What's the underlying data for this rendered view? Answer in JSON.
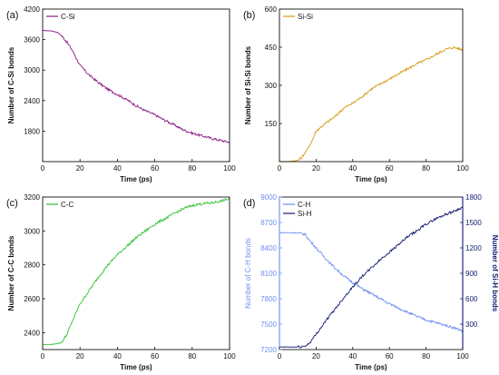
{
  "colors": {
    "cSi": "#8b1a87",
    "siSi": "#d99a18",
    "cC": "#2fc22f",
    "cH": "#6f8ef0",
    "siH": "#101a72"
  },
  "chart_data": [
    {
      "panel": "(a)",
      "type": "line",
      "xlabel": "Time (ps)",
      "ylabel": "Number of C-Si bonds",
      "xlim": [
        0,
        100
      ],
      "ylim": [
        1200,
        4200
      ],
      "xticks": [
        0,
        20,
        40,
        60,
        80,
        100
      ],
      "yticks": [
        1800,
        2400,
        3000,
        3600,
        4200
      ],
      "legend": "top-left",
      "series": [
        {
          "name": "C-Si",
          "color": "cSi",
          "x": [
            0,
            5,
            8,
            10,
            13,
            16,
            20,
            25,
            30,
            35,
            40,
            45,
            50,
            55,
            60,
            65,
            70,
            75,
            80,
            85,
            90,
            95,
            100
          ],
          "y": [
            3780,
            3770,
            3740,
            3680,
            3550,
            3380,
            3090,
            2900,
            2750,
            2620,
            2520,
            2420,
            2300,
            2200,
            2120,
            2020,
            1930,
            1830,
            1760,
            1710,
            1660,
            1620,
            1580
          ]
        }
      ]
    },
    {
      "panel": "(b)",
      "type": "line",
      "xlabel": "Time (ps)",
      "ylabel": "Number of Si-Si bonds",
      "xlim": [
        0,
        100
      ],
      "ylim": [
        0,
        600
      ],
      "xticks": [
        0,
        20,
        40,
        60,
        80,
        100
      ],
      "yticks": [
        150,
        300,
        450,
        600
      ],
      "legend": "top-left",
      "series": [
        {
          "name": "Si-Si",
          "color": "siSi",
          "x": [
            0,
            5,
            10,
            12,
            15,
            18,
            20,
            25,
            30,
            35,
            40,
            45,
            50,
            55,
            60,
            65,
            70,
            75,
            80,
            85,
            90,
            95,
            100
          ],
          "y": [
            0,
            0,
            5,
            15,
            45,
            85,
            120,
            150,
            175,
            210,
            230,
            255,
            285,
            305,
            325,
            345,
            365,
            385,
            400,
            420,
            440,
            450,
            440
          ]
        }
      ]
    },
    {
      "panel": "(c)",
      "type": "line",
      "xlabel": "Time (ps)",
      "ylabel": "Number of C-C bonds",
      "xlim": [
        0,
        100
      ],
      "ylim": [
        2300,
        3200
      ],
      "xticks": [
        0,
        20,
        40,
        60,
        80,
        100
      ],
      "yticks": [
        2400,
        2600,
        2800,
        3000,
        3200
      ],
      "legend": "top-left",
      "series": [
        {
          "name": "C-C",
          "color": "cC",
          "x": [
            0,
            5,
            10,
            13,
            16,
            20,
            25,
            30,
            35,
            40,
            45,
            50,
            55,
            60,
            65,
            70,
            75,
            80,
            85,
            90,
            95,
            100
          ],
          "y": [
            2330,
            2330,
            2340,
            2390,
            2470,
            2570,
            2650,
            2730,
            2800,
            2860,
            2910,
            2960,
            3000,
            3040,
            3070,
            3100,
            3130,
            3150,
            3160,
            3165,
            3175,
            3190
          ]
        }
      ]
    },
    {
      "panel": "(d)",
      "type": "line",
      "xlabel": "Time (ps)",
      "ylabel": "Number of C-H bonds",
      "ylabel_right": "Number of Si-H bonds",
      "xlim": [
        0,
        100
      ],
      "ylim": [
        7200,
        9000
      ],
      "ylim_right": [
        0,
        1800
      ],
      "xticks": [
        0,
        20,
        40,
        60,
        80,
        100
      ],
      "yticks": [
        7200,
        7500,
        7800,
        8100,
        8400,
        8700,
        9000
      ],
      "yticks_right": [
        300,
        600,
        900,
        1200,
        1500,
        1800
      ],
      "legend": "top-left",
      "series": [
        {
          "name": "C-H",
          "axis": "left",
          "color": "cH",
          "x": [
            0,
            5,
            10,
            14,
            16,
            20,
            25,
            30,
            35,
            40,
            45,
            50,
            55,
            60,
            65,
            70,
            75,
            80,
            85,
            90,
            95,
            100
          ],
          "y": [
            8580,
            8580,
            8575,
            8560,
            8500,
            8400,
            8280,
            8170,
            8070,
            7990,
            7920,
            7860,
            7800,
            7740,
            7690,
            7640,
            7590,
            7550,
            7520,
            7490,
            7460,
            7420
          ]
        },
        {
          "name": "Si-H",
          "axis": "right",
          "color": "siH",
          "x": [
            0,
            5,
            10,
            14,
            16,
            18,
            20,
            25,
            30,
            35,
            40,
            45,
            50,
            55,
            60,
            65,
            70,
            75,
            80,
            85,
            90,
            95,
            100
          ],
          "y": [
            30,
            30,
            30,
            40,
            70,
            120,
            180,
            330,
            470,
            610,
            740,
            860,
            960,
            1060,
            1150,
            1240,
            1330,
            1400,
            1480,
            1540,
            1590,
            1630,
            1680
          ]
        }
      ]
    }
  ]
}
